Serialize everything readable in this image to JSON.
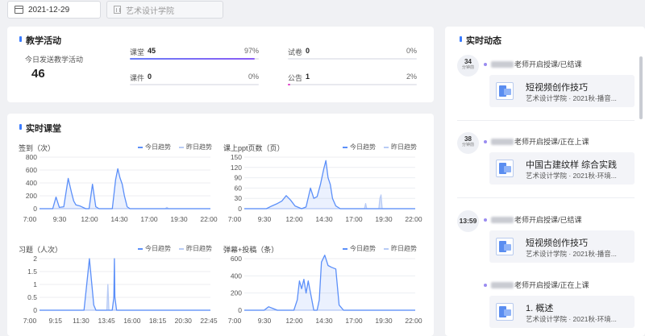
{
  "filters": {
    "date": "2021-12-29",
    "school_placeholder": "艺术设计学院",
    "date_icon": "calendar-icon",
    "school_icon": "building-icon"
  },
  "teaching": {
    "title": "教学活动",
    "sent_label": "今日发送教学活动",
    "sent_value": "46",
    "metrics": [
      {
        "name": "课堂",
        "value": "45",
        "percent_label": "97%",
        "percent": 97,
        "color": "#8a5cf5"
      },
      {
        "name": "试卷",
        "value": "0",
        "percent_label": "0%",
        "percent": 0,
        "color": "#8a5cf5"
      },
      {
        "name": "课件",
        "value": "0",
        "percent_label": "0%",
        "percent": 0,
        "color": "#8a5cf5"
      },
      {
        "name": "公告",
        "value": "1",
        "percent_label": "2%",
        "percent": 2,
        "color": "#e040c8"
      }
    ]
  },
  "live": {
    "title": "实时课堂",
    "legend_today": "今日趋势",
    "legend_yesterday": "昨日趋势",
    "today_color": "#5b8ff9",
    "yesterday_color": "#b8cbf5"
  },
  "chart_data": [
    {
      "type": "area",
      "title": "签到（次）",
      "ylabel": "签到（次）",
      "yticks": [
        "800",
        "600",
        "400",
        "200",
        "0"
      ],
      "ylim": [
        0,
        800
      ],
      "xticks": [
        "7:00",
        "9:30",
        "12:00",
        "14:30",
        "17:00",
        "19:30",
        "22:00"
      ],
      "xlim": [
        0,
        15.5
      ],
      "series": [
        {
          "name": "今日趋势",
          "x": [
            0,
            1.2,
            1.5,
            1.8,
            2.2,
            2.6,
            2.9,
            3.1,
            3.3,
            3.7,
            4.2,
            4.5,
            4.8,
            5.1,
            5.4,
            6.6,
            6.9,
            7.1,
            7.3,
            7.5,
            7.7,
            7.95,
            8.2,
            9,
            12,
            15.5
          ],
          "y": [
            0,
            0,
            180,
            20,
            30,
            470,
            250,
            120,
            60,
            40,
            0,
            0,
            380,
            30,
            0,
            0,
            450,
            620,
            480,
            380,
            200,
            30,
            0,
            0,
            0,
            0
          ]
        },
        {
          "name": "昨日趋势",
          "x": [
            0,
            11.4,
            11.55,
            11.7,
            15.5
          ],
          "y": [
            0,
            0,
            20,
            0,
            0
          ]
        }
      ]
    },
    {
      "type": "area",
      "title": "课上ppt页数（页）",
      "ylabel": "课上ppt页数（页）",
      "yticks": [
        "150",
        "120",
        "90",
        "60",
        "30",
        "0"
      ],
      "ylim": [
        0,
        150
      ],
      "xticks": [
        "7:00",
        "9:30",
        "12:00",
        "14:30",
        "17:00",
        "19:30",
        "22:00"
      ],
      "xlim": [
        0,
        15.5
      ],
      "series": [
        {
          "name": "今日趋势",
          "x": [
            0,
            2,
            2.5,
            3,
            3.4,
            3.8,
            4.2,
            4.6,
            5.2,
            5.6,
            6.0,
            6.3,
            6.6,
            6.9,
            7.2,
            7.4,
            7.6,
            7.8,
            8.0,
            8.3,
            8.7,
            9.2,
            15.5
          ],
          "y": [
            0,
            0,
            8,
            15,
            22,
            38,
            25,
            8,
            0,
            5,
            60,
            30,
            35,
            70,
            115,
            140,
            90,
            70,
            30,
            8,
            0,
            0,
            0
          ]
        },
        {
          "name": "昨日趋势",
          "x": [
            0,
            10.9,
            11.0,
            11.1,
            12.2,
            12.3,
            12.4,
            12.5,
            15.5
          ],
          "y": [
            0,
            0,
            15,
            0,
            0,
            30,
            40,
            0,
            0
          ]
        }
      ]
    },
    {
      "type": "area",
      "title": "习题（人次）",
      "ylabel": "习题（人次）",
      "yticks": [
        "2",
        "1.5",
        "1",
        "0.5",
        "0"
      ],
      "ylim": [
        0,
        2
      ],
      "xticks": [
        "7:00",
        "9:15",
        "11:30",
        "13:45",
        "16:00",
        "18:15",
        "20:30",
        "22:45"
      ],
      "xlim": [
        0,
        15.75
      ],
      "series": [
        {
          "name": "今日趋势",
          "x": [
            0,
            4.1,
            4.3,
            4.6,
            5.0,
            5.2,
            6.7,
            6.85,
            6.9,
            6.95,
            7.1,
            15.75
          ],
          "y": [
            0,
            0,
            0.8,
            2,
            0.2,
            0,
            0,
            0.5,
            2,
            0.5,
            0,
            0
          ]
        },
        {
          "name": "昨日趋势",
          "x": [
            0,
            6.2,
            6.3,
            6.4,
            15.75
          ],
          "y": [
            0,
            0,
            1,
            0,
            0
          ]
        }
      ]
    },
    {
      "type": "area",
      "title": "弹幕+投稿（条）",
      "ylabel": "弹幕+投稿（条）",
      "yticks": [
        "600",
        "400",
        "200",
        "0"
      ],
      "ylim": [
        0,
        600
      ],
      "xticks": [
        "7:00",
        "9:30",
        "12:00",
        "14:30",
        "17:00",
        "19:30",
        "22:00"
      ],
      "xlim": [
        0,
        15.5
      ],
      "series": [
        {
          "name": "今日趋势",
          "x": [
            0,
            1.8,
            2.2,
            2.6,
            3,
            4.5,
            4.8,
            5,
            5.2,
            5.4,
            5.6,
            5.8,
            6.1,
            6.3,
            6.6,
            6.8,
            7.0,
            7.3,
            7.6,
            7.9,
            8.3,
            8.6,
            9,
            15.5
          ],
          "y": [
            0,
            0,
            40,
            20,
            0,
            0,
            120,
            340,
            250,
            360,
            200,
            340,
            140,
            0,
            0,
            120,
            560,
            640,
            520,
            500,
            480,
            60,
            0,
            0
          ]
        },
        {
          "name": "昨日趋势",
          "x": [
            0,
            15.5
          ],
          "y": [
            0,
            0
          ]
        }
      ]
    }
  ],
  "feed": {
    "title": "实时动态",
    "items": [
      {
        "time": "34",
        "ago": "分钟前",
        "text": "老师开启授课/已结课",
        "course": "短视频创作技巧",
        "sub": "艺术设计学院 · 2021秋-播音..."
      },
      {
        "time": "38",
        "ago": "分钟前",
        "text": "老师开启授课/正在上课",
        "course": "中国古建纹样 综合实践",
        "sub": "艺术设计学院 · 2021秋-环境..."
      },
      {
        "time": "13:59",
        "ago": "",
        "text": "老师开启授课/已结课",
        "course": "短视频创作技巧",
        "sub": "艺术设计学院 · 2021秋-播音..."
      },
      {
        "time": "",
        "ago": "",
        "text": "老师开启授课/正在上课",
        "course": "1. 概述",
        "sub": "艺术设计学院 · 2021秋-环境..."
      }
    ]
  }
}
